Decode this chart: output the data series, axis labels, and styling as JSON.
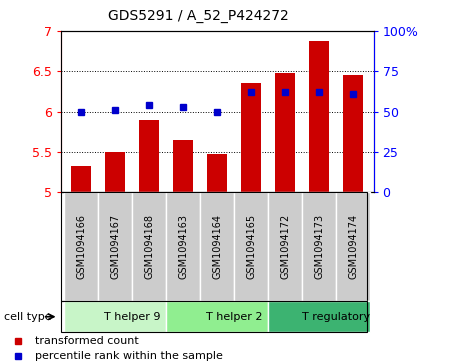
{
  "title": "GDS5291 / A_52_P424272",
  "samples": [
    "GSM1094166",
    "GSM1094167",
    "GSM1094168",
    "GSM1094163",
    "GSM1094164",
    "GSM1094165",
    "GSM1094172",
    "GSM1094173",
    "GSM1094174"
  ],
  "transformed_counts": [
    5.33,
    5.5,
    5.9,
    5.65,
    5.48,
    6.35,
    6.48,
    6.88,
    6.45
  ],
  "percentile_ranks": [
    50,
    51,
    54,
    53,
    50,
    62,
    62,
    62,
    61
  ],
  "ylim_left": [
    5.0,
    7.0
  ],
  "ylim_right": [
    0,
    100
  ],
  "yticks_left": [
    5.0,
    5.5,
    6.0,
    6.5,
    7.0
  ],
  "ytick_labels_left": [
    "5",
    "5.5",
    "6",
    "6.5",
    "7"
  ],
  "yticks_right": [
    0,
    25,
    50,
    75,
    100
  ],
  "ytick_labels_right": [
    "0",
    "25",
    "50",
    "75",
    "100%"
  ],
  "cell_types": [
    {
      "label": "T helper 9",
      "span": [
        0,
        3
      ],
      "color": "#c8f5c8"
    },
    {
      "label": "T helper 2",
      "span": [
        3,
        6
      ],
      "color": "#90ee90"
    },
    {
      "label": "T regulatory",
      "span": [
        6,
        9
      ],
      "color": "#3cb371"
    }
  ],
  "bar_color": "#cc0000",
  "dot_color": "#0000cc",
  "bar_width": 0.6,
  "cell_type_box_color": "#cccccc",
  "legend_bar_label": "transformed count",
  "legend_dot_label": "percentile rank within the sample",
  "cell_type_label": "cell type"
}
